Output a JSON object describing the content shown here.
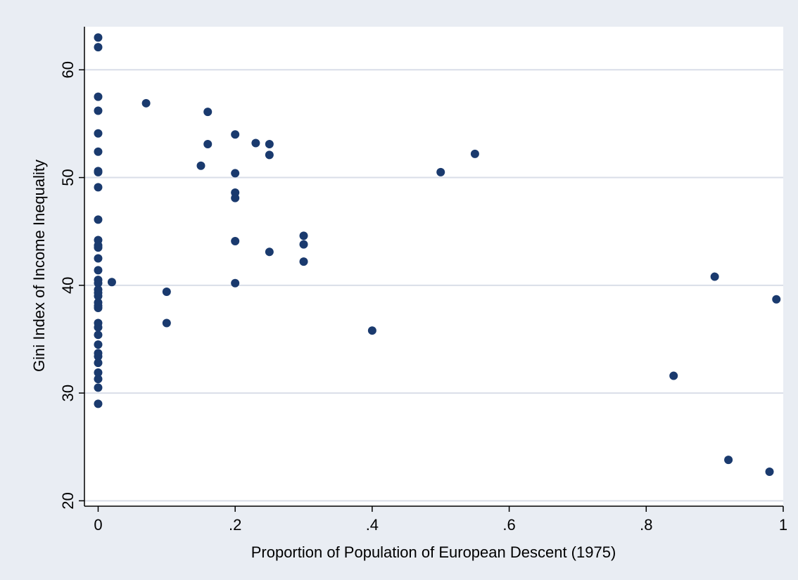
{
  "colors": {
    "outer_background": "#e9edf3",
    "plot_background": "#ffffff",
    "gridline": "#d9dee8",
    "marker": "#1a3a6e",
    "axis": "#000000"
  },
  "chart_data": {
    "type": "scatter",
    "title": "",
    "xlabel": "Proportion of Population of European Descent (1975)",
    "ylabel": "Gini Index of Income Inequality",
    "xlim": [
      -0.02,
      1.0
    ],
    "ylim": [
      19.5,
      64
    ],
    "x_ticks": [
      0,
      0.2,
      0.4,
      0.6,
      0.8,
      1
    ],
    "x_tick_labels": [
      "0",
      ".2",
      ".4",
      ".6",
      ".8",
      "1"
    ],
    "y_ticks": [
      20,
      30,
      40,
      50,
      60
    ],
    "y_tick_labels": [
      "20",
      "30",
      "40",
      "50",
      "60"
    ],
    "grid": "horizontal",
    "legend": "none",
    "points": [
      {
        "x": 0,
        "y": 63.0
      },
      {
        "x": 0,
        "y": 62.1
      },
      {
        "x": 0,
        "y": 57.5
      },
      {
        "x": 0,
        "y": 56.2
      },
      {
        "x": 0,
        "y": 54.1
      },
      {
        "x": 0,
        "y": 52.4
      },
      {
        "x": 0,
        "y": 50.6
      },
      {
        "x": 0,
        "y": 50.5
      },
      {
        "x": 0,
        "y": 49.1
      },
      {
        "x": 0,
        "y": 46.1
      },
      {
        "x": 0,
        "y": 44.2
      },
      {
        "x": 0,
        "y": 43.7
      },
      {
        "x": 0,
        "y": 43.5
      },
      {
        "x": 0,
        "y": 42.5
      },
      {
        "x": 0,
        "y": 41.4
      },
      {
        "x": 0,
        "y": 40.5
      },
      {
        "x": 0,
        "y": 40.2
      },
      {
        "x": 0,
        "y": 39.6
      },
      {
        "x": 0,
        "y": 39.3
      },
      {
        "x": 0,
        "y": 39.0
      },
      {
        "x": 0,
        "y": 38.4
      },
      {
        "x": 0,
        "y": 38.1
      },
      {
        "x": 0,
        "y": 37.9
      },
      {
        "x": 0,
        "y": 36.5
      },
      {
        "x": 0,
        "y": 36.1
      },
      {
        "x": 0,
        "y": 35.4
      },
      {
        "x": 0,
        "y": 34.5
      },
      {
        "x": 0,
        "y": 33.7
      },
      {
        "x": 0,
        "y": 33.4
      },
      {
        "x": 0,
        "y": 32.8
      },
      {
        "x": 0,
        "y": 31.9
      },
      {
        "x": 0,
        "y": 31.3
      },
      {
        "x": 0,
        "y": 30.5
      },
      {
        "x": 0,
        "y": 29.0
      },
      {
        "x": 0.02,
        "y": 40.3
      },
      {
        "x": 0.07,
        "y": 56.9
      },
      {
        "x": 0.1,
        "y": 39.4
      },
      {
        "x": 0.1,
        "y": 36.5
      },
      {
        "x": 0.15,
        "y": 51.1
      },
      {
        "x": 0.16,
        "y": 56.1
      },
      {
        "x": 0.16,
        "y": 53.1
      },
      {
        "x": 0.2,
        "y": 54.0
      },
      {
        "x": 0.2,
        "y": 50.4
      },
      {
        "x": 0.2,
        "y": 48.6
      },
      {
        "x": 0.2,
        "y": 48.1
      },
      {
        "x": 0.2,
        "y": 44.1
      },
      {
        "x": 0.2,
        "y": 40.2
      },
      {
        "x": 0.23,
        "y": 53.2
      },
      {
        "x": 0.25,
        "y": 53.1
      },
      {
        "x": 0.25,
        "y": 52.1
      },
      {
        "x": 0.25,
        "y": 43.1
      },
      {
        "x": 0.3,
        "y": 44.6
      },
      {
        "x": 0.3,
        "y": 43.8
      },
      {
        "x": 0.3,
        "y": 42.2
      },
      {
        "x": 0.4,
        "y": 35.8
      },
      {
        "x": 0.5,
        "y": 50.5
      },
      {
        "x": 0.55,
        "y": 52.2
      },
      {
        "x": 0.84,
        "y": 31.6
      },
      {
        "x": 0.9,
        "y": 40.8
      },
      {
        "x": 0.92,
        "y": 23.8
      },
      {
        "x": 0.98,
        "y": 22.7
      },
      {
        "x": 0.99,
        "y": 38.7
      }
    ]
  }
}
